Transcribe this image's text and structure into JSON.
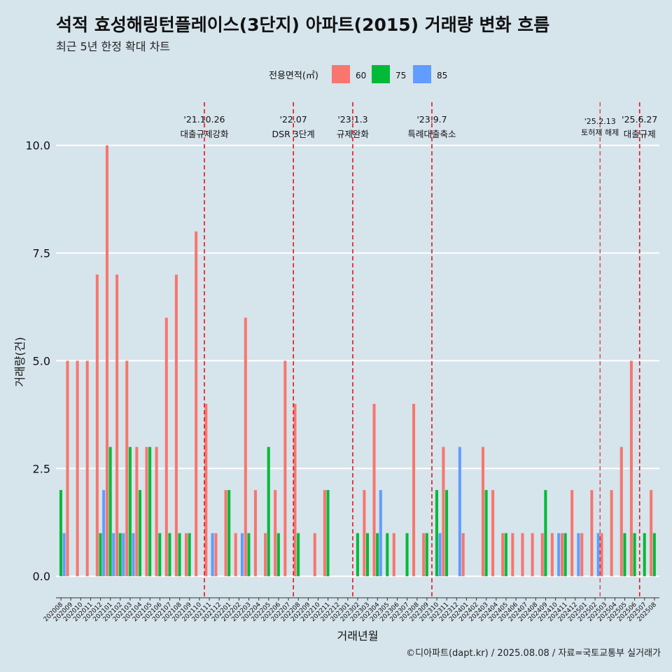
{
  "chart_data": {
    "type": "bar",
    "title": "석적 효성해링턴플레이스(3단지) 아파트(2015) 거래량 변화 흐름",
    "subtitle": "최근 5년 한정 확대 차트",
    "xlabel": "거래년월",
    "ylabel": "거래량(건)",
    "caption": "©디아파트(dapt.kr) / 2025.08.08 / 자료=국토교통부 실거래가",
    "legend": {
      "title": "전용면적(㎡)",
      "position": "top",
      "entries": [
        {
          "name": "60",
          "color": "#F8766D"
        },
        {
          "name": "75",
          "color": "#00BA38"
        },
        {
          "name": "85",
          "color": "#619CFF"
        }
      ]
    },
    "ylim": [
      -0.5,
      11
    ],
    "yticks": [
      0.0,
      2.5,
      5.0,
      7.5,
      10.0
    ],
    "ytick_labels": [
      "0.0",
      "2.5",
      "5.0",
      "7.5",
      "10.0"
    ],
    "grid": true,
    "categories": [
      "202008",
      "202009",
      "202010",
      "202011",
      "202012",
      "202101",
      "202102",
      "202103",
      "202104",
      "202105",
      "202106",
      "202107",
      "202108",
      "202109",
      "202110",
      "202111",
      "202112",
      "202201",
      "202202",
      "202203",
      "202204",
      "202205",
      "202206",
      "202207",
      "202208",
      "202209",
      "202210",
      "202211",
      "202212",
      "202301",
      "202302",
      "202303",
      "202304",
      "202305",
      "202306",
      "202307",
      "202308",
      "202309",
      "202310",
      "202311",
      "202312",
      "202401",
      "202402",
      "202403",
      "202404",
      "202405",
      "202406",
      "202407",
      "202408",
      "202409",
      "202410",
      "202411",
      "202412",
      "202501",
      "202502",
      "202503",
      "202504",
      "202505",
      "202506",
      "202507",
      "202508"
    ],
    "series": [
      {
        "name": "60",
        "color": "#F8766D",
        "values": [
          0,
          5,
          5,
          5,
          7,
          10,
          7,
          5,
          3,
          3,
          3,
          6,
          7,
          1,
          8,
          4,
          1,
          2,
          1,
          6,
          2,
          1,
          2,
          5,
          4,
          0,
          1,
          2,
          0,
          0,
          0,
          2,
          4,
          0,
          1,
          0,
          4,
          1,
          0,
          3,
          0,
          1,
          0,
          3,
          2,
          1,
          1,
          1,
          1,
          1,
          1,
          1,
          2,
          1,
          2,
          1,
          2,
          3,
          5,
          0,
          2
        ]
      },
      {
        "name": "75",
        "color": "#00BA38",
        "values": [
          2,
          0,
          0,
          0,
          1,
          3,
          1,
          3,
          2,
          3,
          1,
          1,
          1,
          1,
          0,
          0,
          0,
          2,
          0,
          1,
          0,
          3,
          1,
          0,
          1,
          0,
          0,
          2,
          0,
          0,
          1,
          1,
          1,
          1,
          0,
          1,
          0,
          1,
          2,
          2,
          0,
          0,
          0,
          2,
          0,
          1,
          0,
          0,
          0,
          2,
          0,
          1,
          0,
          0,
          0,
          0,
          0,
          1,
          1,
          1,
          1
        ]
      },
      {
        "name": "85",
        "color": "#619CFF",
        "values": [
          1,
          0,
          0,
          0,
          2,
          1,
          1,
          1,
          0,
          0,
          0,
          0,
          0,
          0,
          0,
          1,
          0,
          0,
          1,
          0,
          0,
          0,
          0,
          0,
          0,
          0,
          0,
          0,
          0,
          0,
          0,
          0,
          2,
          0,
          0,
          0,
          0,
          0,
          1,
          0,
          3,
          0,
          0,
          0,
          0,
          0,
          0,
          0,
          0,
          0,
          1,
          0,
          1,
          0,
          1,
          0,
          0,
          0,
          0,
          0,
          0
        ]
      }
    ],
    "annotations": [
      {
        "after": "202110",
        "date": "'21.10.26",
        "label": "대출규제강화",
        "size": "normal"
      },
      {
        "after": "202207",
        "date": "'22.07",
        "label": "DSR 3단계",
        "size": "normal"
      },
      {
        "after": "202301",
        "date": "'23.1.3",
        "label": "규제완화",
        "size": "normal"
      },
      {
        "after": "202309",
        "date": "'23.9.7",
        "label": "특례대출축소",
        "size": "normal"
      },
      {
        "after": "202502",
        "date": "'25.2.13",
        "label": "토허제 해제",
        "size": "small"
      },
      {
        "after": "202506",
        "date": "'25.6.27",
        "label": "대출규제",
        "size": "normal"
      }
    ]
  }
}
